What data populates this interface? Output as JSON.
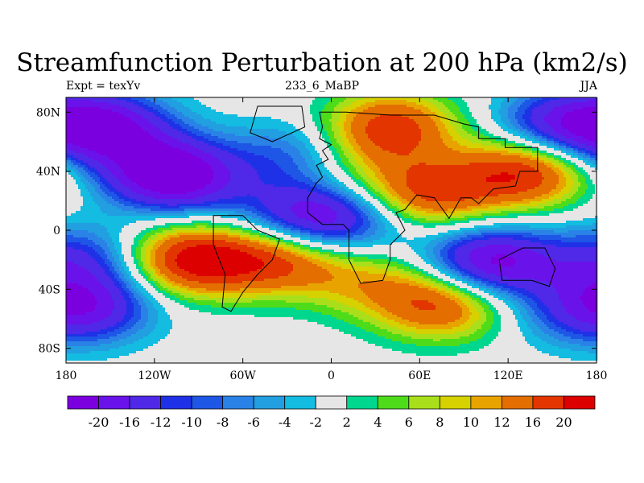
{
  "figure": {
    "title": "Streamfunction Perturbation at 200 hPa (km2/s)",
    "left_label": "Expt = texYv",
    "center_label": "233_6_MaBP",
    "right_label": "JJA"
  },
  "map": {
    "projection": "cylindrical equidistant",
    "lon_range": [
      -180,
      180
    ],
    "lat_range": [
      -90,
      90
    ],
    "x_tick_labels": [
      "180",
      "120W",
      "60W",
      "0",
      "60E",
      "120E",
      "180"
    ],
    "y_tick_labels": [
      "80N",
      "40N",
      "0",
      "40S",
      "80S"
    ],
    "coastline": "blocky continental outlines (Africa, Eurasia, South America)",
    "missing_fill_color": "#e6e6e6"
  },
  "colorbar": {
    "labels": [
      "-20",
      "-16",
      "-12",
      "-10",
      "-8",
      "-6",
      "-4",
      "-2",
      "2",
      "4",
      "6",
      "8",
      "10",
      "12",
      "16",
      "20"
    ],
    "colors": [
      "#7b00e0",
      "#6a12ea",
      "#4f28e8",
      "#1f31e6",
      "#1e56e6",
      "#2a82e6",
      "#219fe0",
      "#13bce0",
      "#e6e6e6",
      "#00d78e",
      "#4edc1a",
      "#a8df1a",
      "#d6d100",
      "#e8a300",
      "#e46e00",
      "#e23500",
      "#dc0000"
    ]
  },
  "anomaly_centers": [
    {
      "lon": -155,
      "lat": 70,
      "value": -20
    },
    {
      "lon": 155,
      "lat": 70,
      "value": -20
    },
    {
      "lon": -105,
      "lat": 35,
      "value": -20
    },
    {
      "lon": -20,
      "lat": 50,
      "value": -12
    },
    {
      "lon": -20,
      "lat": 10,
      "value": -14
    },
    {
      "lon": 108,
      "lat": -22,
      "value": -22
    },
    {
      "lon": -170,
      "lat": -20,
      "value": -12
    },
    {
      "lon": -165,
      "lat": -52,
      "value": -16
    },
    {
      "lon": 10,
      "lat": 6,
      "value": -10
    },
    {
      "lon": -120,
      "lat": 45,
      "value": -8
    },
    {
      "lon": 160,
      "lat": -55,
      "value": -6
    },
    {
      "lon": 40,
      "lat": 70,
      "value": 18
    },
    {
      "lon": 65,
      "lat": 25,
      "value": 17
    },
    {
      "lon": 130,
      "lat": 38,
      "value": 18
    },
    {
      "lon": -95,
      "lat": -20,
      "value": 22
    },
    {
      "lon": -35,
      "lat": -20,
      "value": 16
    },
    {
      "lon": 75,
      "lat": -50,
      "value": 17
    },
    {
      "lon": 5,
      "lat": 45,
      "value": 8
    },
    {
      "lon": 25,
      "lat": -35,
      "value": 8
    },
    {
      "lon": 145,
      "lat": 60,
      "value": 6
    }
  ]
}
